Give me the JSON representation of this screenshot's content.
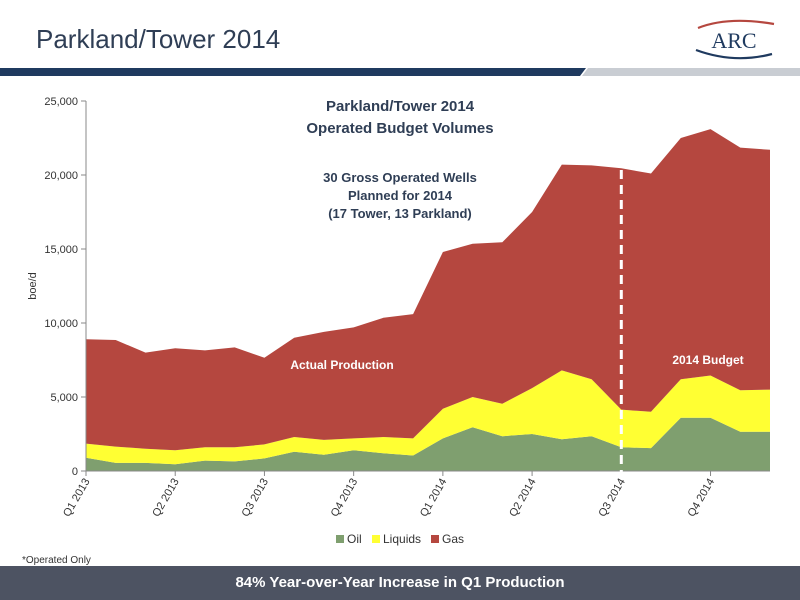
{
  "slide": {
    "title": "Parkland/Tower 2014",
    "logo_text": "ARC",
    "footnote": "*Operated Only",
    "footer": "84% Year-over-Year Increase in Q1 Production"
  },
  "colors": {
    "oil": "#7f9f6f",
    "liquids": "#ffff33",
    "gas": "#b5473f",
    "title_bar_navy": "#1f3a5f",
    "footer_bar": "#4d5362"
  },
  "chart_data": {
    "type": "area",
    "stacked": true,
    "title_lines": [
      "Parkland/Tower 2014",
      "Operated Budget Volumes"
    ],
    "subtitle_lines": [
      "30 Gross Operated Wells",
      "Planned for 2014",
      "(17 Tower, 13 Parkland)"
    ],
    "annotations": [
      "Actual  Production",
      "2014 Budget"
    ],
    "ylabel": "boe/d",
    "ylim": [
      0,
      25000
    ],
    "yticks": [
      0,
      5000,
      10000,
      15000,
      20000,
      25000
    ],
    "ytick_labels": [
      "0",
      "5,000",
      "10,000",
      "15,000",
      "20,000",
      "25,000"
    ],
    "x_tick_labels": [
      "Q1 2013",
      "Q2 2013",
      "Q3 2013",
      "Q4 2013",
      "Q1 2014",
      "Q2 2014",
      "Q3 2014",
      "Q4 2014"
    ],
    "x_tick_positions": [
      0,
      3,
      6,
      9,
      12,
      15,
      18,
      21
    ],
    "n_points": 24,
    "budget_divider_index": 18,
    "legend_position": "bottom",
    "series": [
      {
        "name": "Oil",
        "values": [
          900,
          550,
          550,
          450,
          700,
          650,
          850,
          1300,
          1100,
          1400,
          1200,
          1050,
          2200,
          2950,
          2350,
          2500,
          2150,
          2350,
          1600,
          1550,
          3600,
          3600,
          2650,
          2650
        ]
      },
      {
        "name": "Liquids",
        "values": [
          950,
          1100,
          950,
          950,
          900,
          950,
          950,
          1000,
          1000,
          800,
          1100,
          1150,
          2000,
          2050,
          2200,
          3100,
          4650,
          3850,
          2550,
          2450,
          2600,
          2850,
          2800,
          2850
        ]
      },
      {
        "name": "Gas",
        "values": [
          7050,
          7200,
          6500,
          6900,
          6550,
          6750,
          5850,
          6700,
          7300,
          7500,
          8050,
          8400,
          10600,
          10350,
          10900,
          11900,
          13900,
          14450,
          16300,
          16100,
          16300,
          16650,
          16400,
          16200
        ]
      }
    ]
  }
}
